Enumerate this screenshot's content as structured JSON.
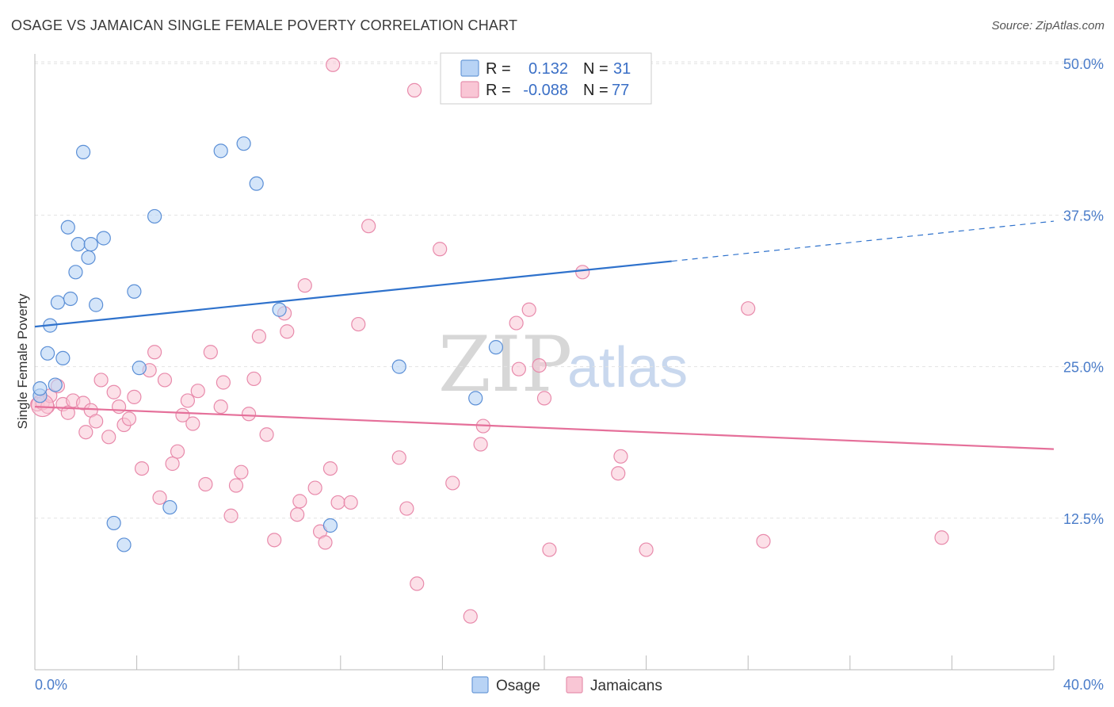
{
  "header": {
    "title": "OSAGE VS JAMAICAN SINGLE FEMALE POVERTY CORRELATION CHART",
    "source": "Source: ZipAtlas.com"
  },
  "watermark": {
    "zip": "ZIP",
    "atlas": "atlas"
  },
  "legend": {
    "rows": [
      {
        "r_label": "R =",
        "r_value": "0.132",
        "n_label": "N =",
        "n_value": "31",
        "fill": "#b8d3f5",
        "stroke": "#6a9ad8"
      },
      {
        "r_label": "R =",
        "r_value": "-0.088",
        "n_label": "N =",
        "n_value": "77",
        "fill": "#f9c6d5",
        "stroke": "#e690ad"
      }
    ]
  },
  "bottom_legend": {
    "osage": "Osage",
    "jamaicans": "Jamaicans"
  },
  "colors": {
    "osage_fill": "#b8d3f5",
    "osage_stroke": "#5b8fd6",
    "osage_line": "#2f72cc",
    "jamaican_fill": "#f9c6d5",
    "jamaican_stroke": "#e88aab",
    "jamaican_line": "#e5709a"
  },
  "chart_data": {
    "type": "scatter",
    "title": "OSAGE VS JAMAICAN SINGLE FEMALE POVERTY CORRELATION CHART",
    "xlabel": "",
    "ylabel": "Single Female Poverty",
    "xlim": [
      0,
      40
    ],
    "ylim": [
      0,
      50.8
    ],
    "x_tick_labels": [
      "0.0%",
      "40.0%"
    ],
    "y_ticks": [
      12.5,
      25.0,
      37.5,
      50.0
    ],
    "y_tick_labels": [
      "12.5%",
      "25.0%",
      "37.5%",
      "50.0%"
    ],
    "grid": "horizontal dashed",
    "legend_position": "top-center",
    "series": [
      {
        "name": "Osage",
        "r": 0.132,
        "n": 31,
        "trend": {
          "x0": 0,
          "y0": 28.3,
          "x1": 25.0,
          "y1": 33.7,
          "dash_to_x": 40.0,
          "dash_to_y": 37.0
        },
        "points": [
          [
            0.2,
            22.6
          ],
          [
            0.2,
            23.2
          ],
          [
            0.5,
            26.1
          ],
          [
            0.6,
            28.4
          ],
          [
            0.8,
            23.5
          ],
          [
            0.9,
            30.3
          ],
          [
            1.1,
            25.7
          ],
          [
            1.3,
            36.5
          ],
          [
            1.4,
            30.6
          ],
          [
            1.6,
            32.8
          ],
          [
            1.7,
            35.1
          ],
          [
            1.9,
            42.7
          ],
          [
            2.1,
            34.0
          ],
          [
            2.2,
            35.1
          ],
          [
            2.4,
            30.1
          ],
          [
            2.7,
            35.6
          ],
          [
            3.1,
            12.1
          ],
          [
            3.5,
            10.3
          ],
          [
            3.9,
            31.2
          ],
          [
            4.1,
            24.9
          ],
          [
            4.7,
            37.4
          ],
          [
            5.3,
            13.4
          ],
          [
            7.3,
            42.8
          ],
          [
            8.2,
            43.4
          ],
          [
            8.7,
            40.1
          ],
          [
            9.6,
            29.7
          ],
          [
            11.6,
            11.9
          ],
          [
            14.3,
            25.0
          ],
          [
            17.3,
            22.4
          ],
          [
            18.1,
            26.6
          ],
          [
            22.7,
            50.0
          ]
        ]
      },
      {
        "name": "Jamaicans",
        "r": -0.088,
        "n": 77,
        "trend": {
          "x0": 0,
          "y0": 21.7,
          "x1": 40.0,
          "y1": 18.2
        },
        "points": [
          [
            0.1,
            21.9
          ],
          [
            0.3,
            22.0
          ],
          [
            0.5,
            21.7
          ],
          [
            0.6,
            22.6
          ],
          [
            0.9,
            23.4
          ],
          [
            1.1,
            21.9
          ],
          [
            1.3,
            21.2
          ],
          [
            1.5,
            22.2
          ],
          [
            1.9,
            22.0
          ],
          [
            2.0,
            19.6
          ],
          [
            2.2,
            21.4
          ],
          [
            2.4,
            20.5
          ],
          [
            2.6,
            23.9
          ],
          [
            2.9,
            19.2
          ],
          [
            3.1,
            22.9
          ],
          [
            3.3,
            21.7
          ],
          [
            3.5,
            20.2
          ],
          [
            3.7,
            20.7
          ],
          [
            3.9,
            22.5
          ],
          [
            4.2,
            16.6
          ],
          [
            4.5,
            24.7
          ],
          [
            4.7,
            26.2
          ],
          [
            4.9,
            14.2
          ],
          [
            5.1,
            23.9
          ],
          [
            5.4,
            17.0
          ],
          [
            5.6,
            18.0
          ],
          [
            5.8,
            21.0
          ],
          [
            6.0,
            22.2
          ],
          [
            6.2,
            20.3
          ],
          [
            6.4,
            23.0
          ],
          [
            6.7,
            15.3
          ],
          [
            6.9,
            26.2
          ],
          [
            7.3,
            21.7
          ],
          [
            7.4,
            23.7
          ],
          [
            7.7,
            12.7
          ],
          [
            7.9,
            15.2
          ],
          [
            8.1,
            16.3
          ],
          [
            8.4,
            21.1
          ],
          [
            8.6,
            24.0
          ],
          [
            8.8,
            27.5
          ],
          [
            9.1,
            19.4
          ],
          [
            9.4,
            10.7
          ],
          [
            9.8,
            29.4
          ],
          [
            9.9,
            27.9
          ],
          [
            10.3,
            12.8
          ],
          [
            10.4,
            13.9
          ],
          [
            10.6,
            31.7
          ],
          [
            11.0,
            15.0
          ],
          [
            11.2,
            11.4
          ],
          [
            11.4,
            10.5
          ],
          [
            11.6,
            16.6
          ],
          [
            11.9,
            13.8
          ],
          [
            12.4,
            13.8
          ],
          [
            12.7,
            28.5
          ],
          [
            13.1,
            36.6
          ],
          [
            14.3,
            17.5
          ],
          [
            14.6,
            13.3
          ],
          [
            14.9,
            47.8
          ],
          [
            15.0,
            7.1
          ],
          [
            15.9,
            34.7
          ],
          [
            16.4,
            15.4
          ],
          [
            17.1,
            4.4
          ],
          [
            17.5,
            18.6
          ],
          [
            17.6,
            20.1
          ],
          [
            18.9,
            28.6
          ],
          [
            19.0,
            24.8
          ],
          [
            19.4,
            29.7
          ],
          [
            19.8,
            25.1
          ],
          [
            20.0,
            22.4
          ],
          [
            20.2,
            9.9
          ],
          [
            21.5,
            32.8
          ],
          [
            22.9,
            16.2
          ],
          [
            23.0,
            17.6
          ],
          [
            24.0,
            9.9
          ],
          [
            28.0,
            29.8
          ],
          [
            28.6,
            10.6
          ],
          [
            35.6,
            10.9
          ],
          [
            11.7,
            49.9
          ]
        ]
      }
    ]
  }
}
